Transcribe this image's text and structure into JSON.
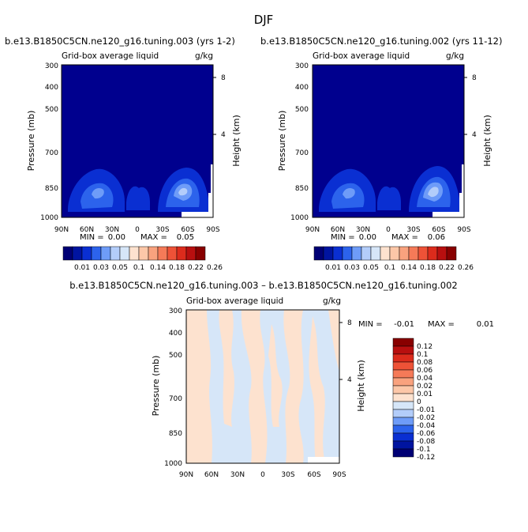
{
  "figure": {
    "season_title": "DJF"
  },
  "colors": {
    "fill_blue": "#00008e",
    "positive_diff": "#fde2cf",
    "negative_diff": "#d6e6f8"
  },
  "chart_data": [
    {
      "type": "heatmap",
      "title": "b.e13.B1850C5CN.ne120_g16.tuning.003 (yrs 1-2)",
      "subtitle_left": "Grid-box average liquid",
      "subtitle_right": "g/kg",
      "xlabel": "",
      "ylabel": "Pressure (mb)",
      "ylabel_right": "Height (km)",
      "x_ticks": [
        "90N",
        "60N",
        "30N",
        "0",
        "30S",
        "60S",
        "90S"
      ],
      "y_ticks": [
        300,
        400,
        500,
        700,
        850,
        1000
      ],
      "y_right_ticks": [
        "8",
        "4"
      ],
      "stats": {
        "min_label": "MIN =",
        "min_value": "0.00",
        "max_label": "MAX =",
        "max_value": "0.05"
      },
      "colorbar_levels": [
        "0.01",
        "0.03",
        "0.05",
        "0.1",
        "0.14",
        "0.18",
        "0.22",
        "0.26"
      ]
    },
    {
      "type": "heatmap",
      "title": "b.e13.B1850C5CN.ne120_g16.tuning.002 (yrs 11-12)",
      "subtitle_left": "Grid-box average liquid",
      "subtitle_right": "g/kg",
      "xlabel": "",
      "ylabel": "Pressure (mb)",
      "ylabel_right": "Height (km)",
      "x_ticks": [
        "90N",
        "60N",
        "30N",
        "0",
        "30S",
        "60S",
        "90S"
      ],
      "y_ticks": [
        300,
        400,
        500,
        700,
        850,
        1000
      ],
      "y_right_ticks": [
        "8",
        "4"
      ],
      "stats": {
        "min_label": "MIN =",
        "min_value": "0.00",
        "max_label": "MAX =",
        "max_value": "0.06"
      },
      "colorbar_levels": [
        "0.01",
        "0.03",
        "0.05",
        "0.1",
        "0.14",
        "0.18",
        "0.22",
        "0.26"
      ]
    },
    {
      "type": "heatmap",
      "title": "b.e13.B1850C5CN.ne120_g16.tuning.003 – b.e13.B1850C5CN.ne120_g16.tuning.002",
      "subtitle_left": "Grid-box average liquid",
      "subtitle_right": "g/kg",
      "xlabel": "",
      "ylabel": "Pressure (mb)",
      "ylabel_right": "Height (km)",
      "x_ticks": [
        "90N",
        "60N",
        "30N",
        "0",
        "30S",
        "60S",
        "90S"
      ],
      "y_ticks": [
        300,
        400,
        500,
        700,
        850,
        1000
      ],
      "y_right_ticks": [
        "8",
        "4"
      ],
      "stats": {
        "min_label": "MIN =",
        "min_value": "-0.01",
        "max_label": "MAX =",
        "max_value": "0.01"
      },
      "colorbar_levels": [
        "0.12",
        "0.1",
        "0.08",
        "0.06",
        "0.04",
        "0.02",
        "0.01",
        "0",
        "-0.01",
        "-0.02",
        "-0.04",
        "-0.06",
        "-0.08",
        "-0.1",
        "-0.12"
      ]
    }
  ]
}
